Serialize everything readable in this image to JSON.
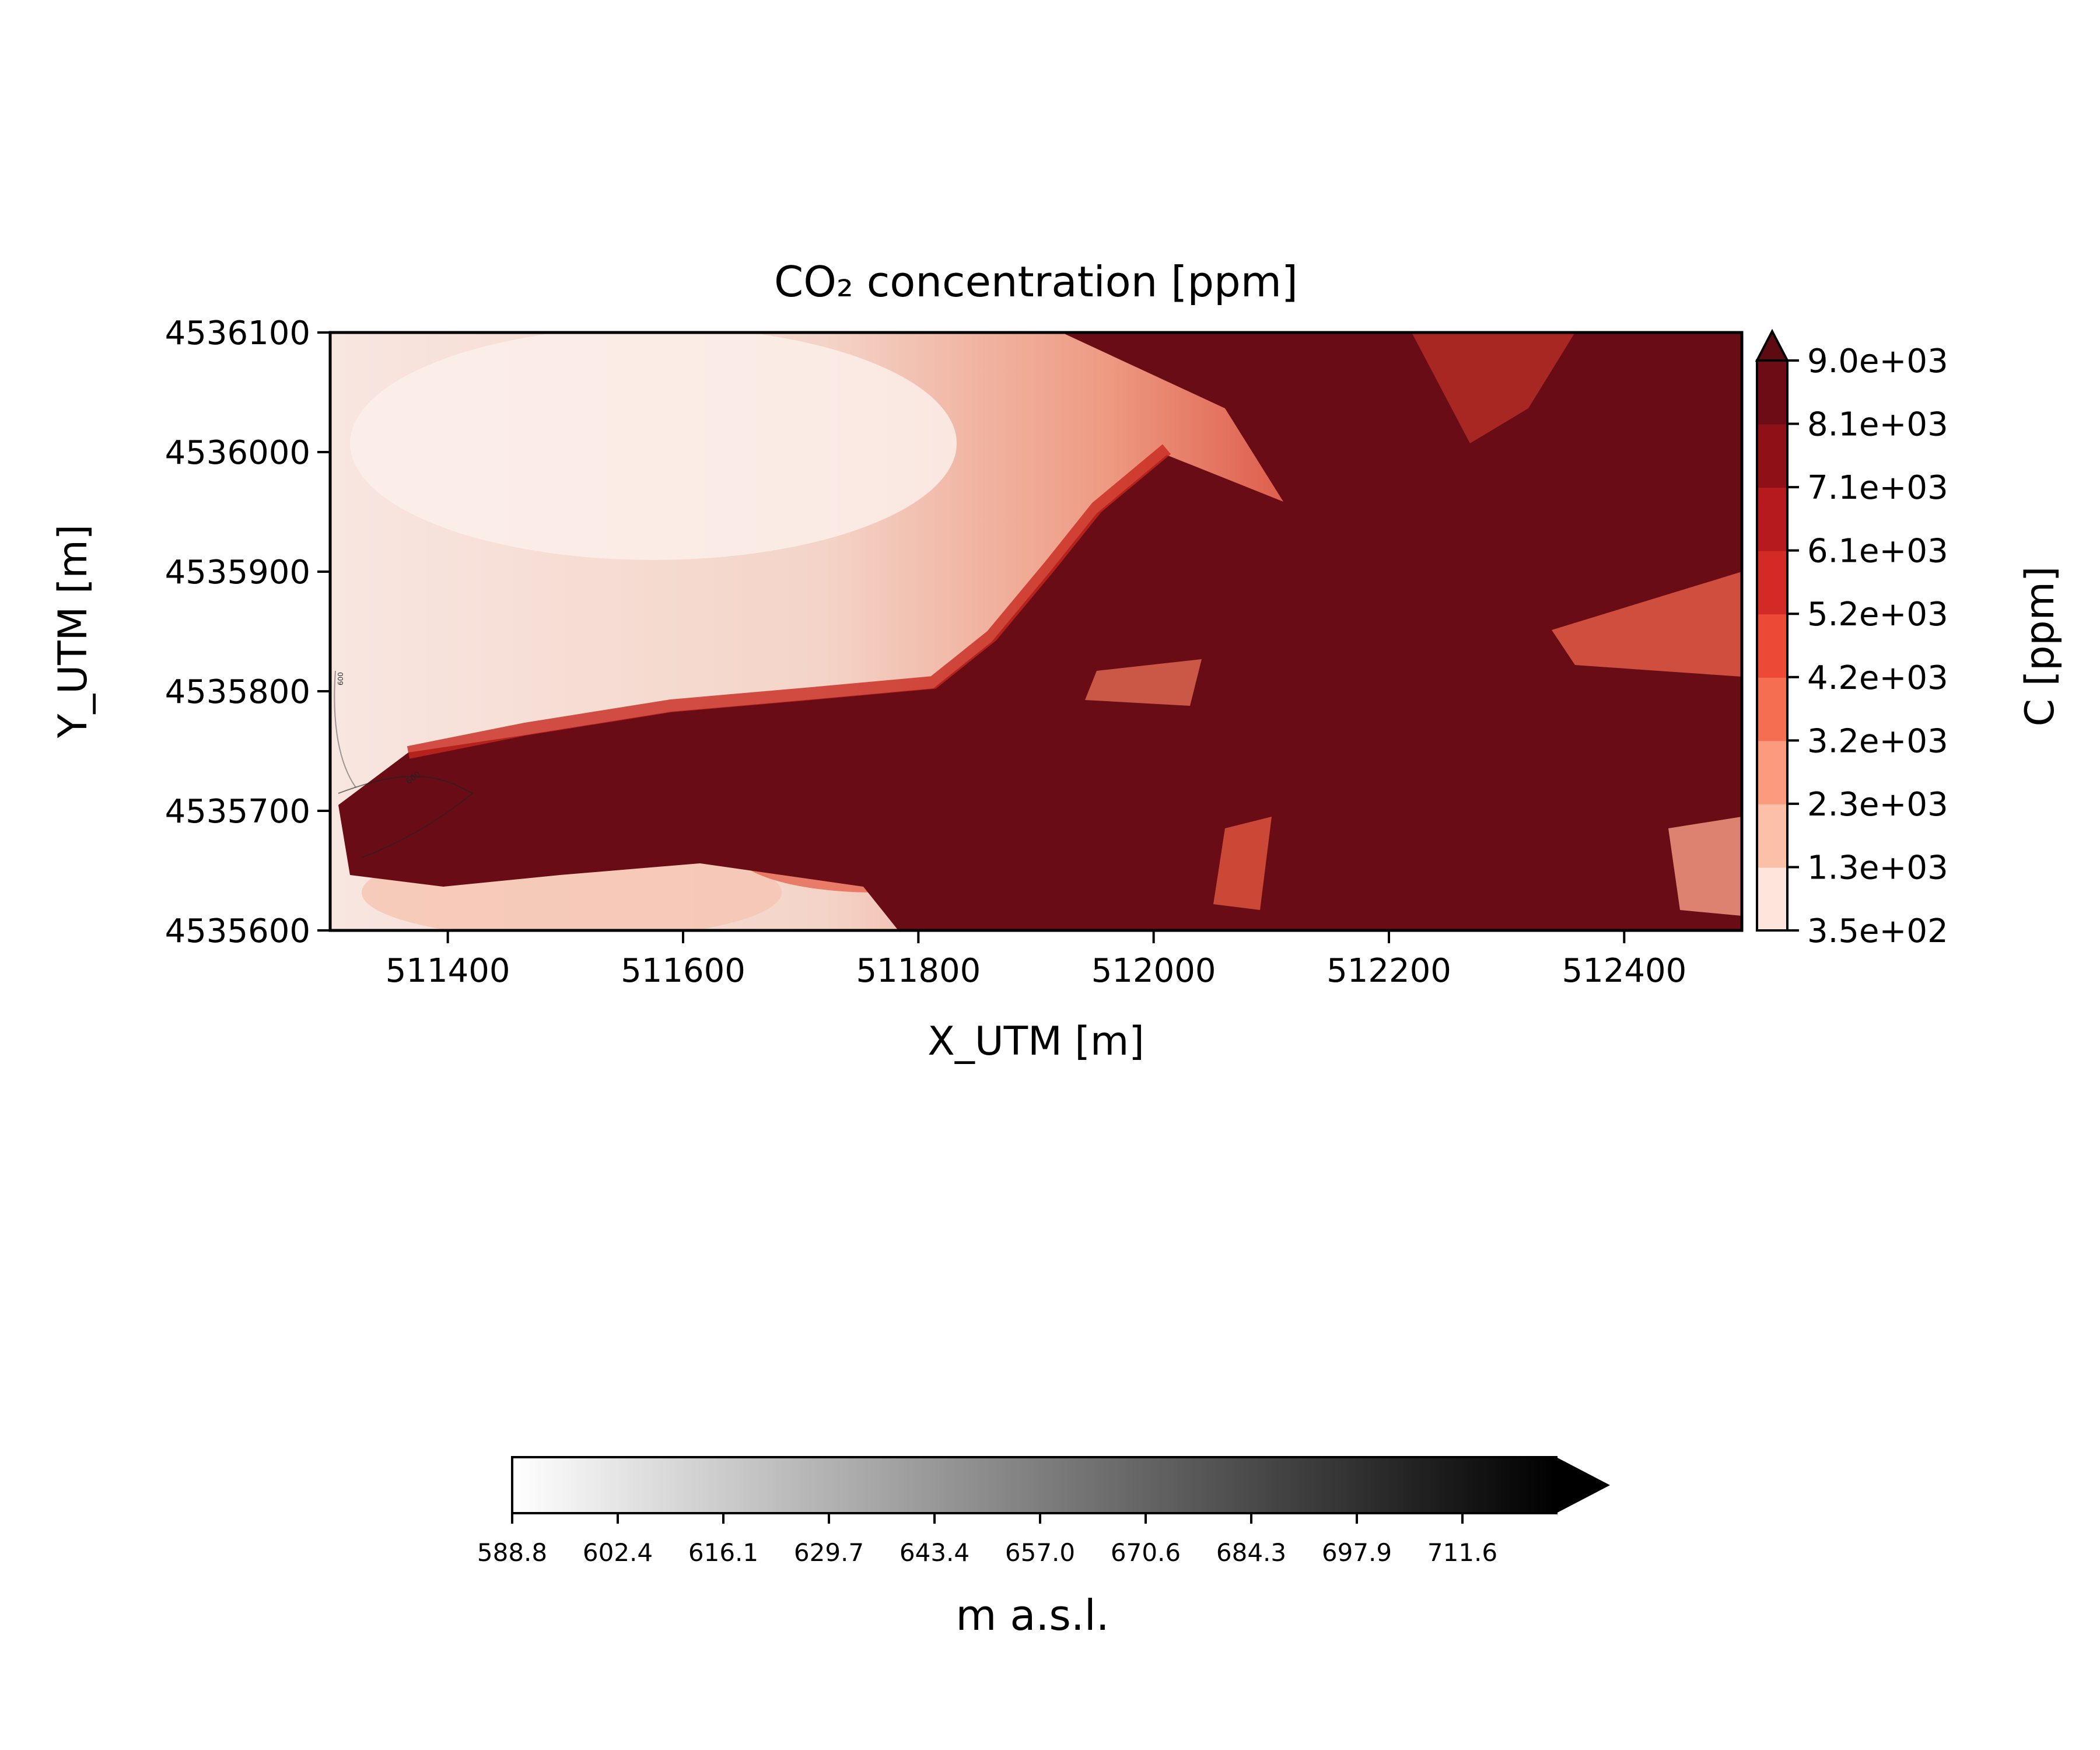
{
  "chart_data": [
    {
      "type": "heatmap",
      "title": "CO₂ concentration [ppm]",
      "xlabel": "X_UTM [m]",
      "ylabel": "Y_UTM [m]",
      "xlim": [
        511300,
        512500
      ],
      "ylim": [
        4535600,
        4536100
      ],
      "xticks": [
        511400,
        511600,
        511800,
        512000,
        512200,
        512400
      ],
      "xtick_labels": [
        "511400",
        "511600",
        "511800",
        "512000",
        "512200",
        "512400"
      ],
      "yticks": [
        4535600,
        4535700,
        4535800,
        4535900,
        4536000,
        4536100
      ],
      "ytick_labels": [
        "4535600",
        "4535700",
        "4535800",
        "4535900",
        "4536000",
        "4536100"
      ],
      "colorbar": {
        "label": "C [ppm]",
        "colormap": "Reds",
        "levels": [
          "3.5e+02",
          "1.3e+03",
          "2.3e+03",
          "3.2e+03",
          "4.2e+03",
          "5.2e+03",
          "6.1e+03",
          "7.1e+03",
          "8.1e+03",
          "9.0e+03"
        ],
        "level_colors": [
          "#fde5dc",
          "#fcc0a8",
          "#fb9a7c",
          "#f66e52",
          "#ec4a37",
          "#d42a25",
          "#b61a1e",
          "#901018",
          "#6d0c14"
        ],
        "extend": "max",
        "extend_color": "#5e0a12"
      },
      "contour_labels": [
        "600",
        "600"
      ]
    },
    {
      "type": "heatmap",
      "colorbar": {
        "label": "m a.s.l.",
        "colormap": "gray_r",
        "orientation": "horizontal",
        "ticks": [
          "588.8",
          "602.4",
          "616.1",
          "629.7",
          "643.4",
          "657.0",
          "670.6",
          "684.3",
          "697.9",
          "711.6"
        ],
        "extend": "max"
      }
    }
  ],
  "colors": {
    "low": "#fde5dc",
    "high": "#650a14",
    "axis": "#000000"
  }
}
